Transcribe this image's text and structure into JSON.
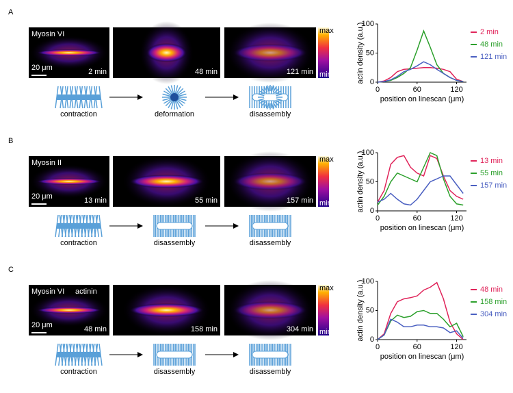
{
  "panels": [
    {
      "label": "A",
      "protein": "Myosin VI",
      "colorbar": {
        "max": "max",
        "min": "min"
      },
      "scale_bar": "20 μm",
      "times": [
        "2 min",
        "48 min",
        "121 min"
      ],
      "steps": [
        "contraction",
        "deformation",
        "disassembly"
      ]
    },
    {
      "label": "B",
      "protein": "Myosin II",
      "colorbar": {
        "max": "max",
        "min": "min"
      },
      "scale_bar": "20 μm",
      "times": [
        "13 min",
        "55 min",
        "157 min"
      ],
      "steps": [
        "contraction",
        "disassembly",
        "disassembly"
      ]
    },
    {
      "label": "C",
      "protein": "Myosin VI",
      "protein2": "actinin",
      "colorbar": {
        "max": "max",
        "min": "min"
      },
      "scale_bar": "20 μm",
      "times": [
        "48 min",
        "158 min",
        "304 min"
      ],
      "steps": [
        "contraction",
        "disassembly",
        "disassembly"
      ]
    }
  ],
  "chart_data": [
    {
      "type": "line",
      "xlabel": "position on linescan (μm)",
      "ylabel": "actin density (a.u.)",
      "x": [
        0,
        10,
        20,
        30,
        40,
        50,
        60,
        70,
        80,
        90,
        100,
        110,
        120,
        130
      ],
      "xlim": [
        0,
        135
      ],
      "xticks": [
        0,
        60,
        120
      ],
      "ylim": [
        0,
        100
      ],
      "yticks": [
        0,
        50,
        100
      ],
      "series": [
        {
          "name": "2 min",
          "color": "#e0245a",
          "values": [
            0,
            2,
            8,
            18,
            22,
            23,
            24,
            25,
            25,
            24,
            22,
            18,
            5,
            1
          ]
        },
        {
          "name": "48 min",
          "color": "#2ca02c",
          "values": [
            0,
            1,
            3,
            8,
            15,
            25,
            55,
            88,
            60,
            30,
            15,
            8,
            3,
            1
          ]
        },
        {
          "name": "121 min",
          "color": "#4a5fc1",
          "values": [
            0,
            1,
            4,
            10,
            18,
            22,
            28,
            35,
            30,
            22,
            15,
            8,
            3,
            1
          ]
        }
      ]
    },
    {
      "type": "line",
      "xlabel": "position on linescan (μm)",
      "ylabel": "actin density (a.u.)",
      "x": [
        0,
        10,
        20,
        30,
        40,
        50,
        60,
        70,
        80,
        90,
        100,
        110,
        120,
        130
      ],
      "xlim": [
        0,
        135
      ],
      "xticks": [
        0,
        60,
        120
      ],
      "ylim": [
        0,
        100
      ],
      "yticks": [
        0,
        50,
        100
      ],
      "series": [
        {
          "name": "13 min",
          "color": "#e0245a",
          "values": [
            15,
            35,
            80,
            92,
            95,
            75,
            65,
            60,
            95,
            90,
            60,
            35,
            25,
            20
          ]
        },
        {
          "name": "55 min",
          "color": "#2ca02c",
          "values": [
            10,
            25,
            50,
            65,
            60,
            55,
            50,
            75,
            100,
            95,
            55,
            25,
            12,
            10
          ]
        },
        {
          "name": "157 min",
          "color": "#4a5fc1",
          "values": [
            15,
            20,
            30,
            20,
            12,
            10,
            20,
            35,
            50,
            55,
            60,
            60,
            45,
            30
          ]
        }
      ]
    },
    {
      "type": "line",
      "xlabel": "position on linescan (μm)",
      "ylabel": "actin density (a.u.)",
      "x": [
        0,
        10,
        20,
        30,
        40,
        50,
        60,
        70,
        80,
        90,
        100,
        110,
        120,
        130
      ],
      "xlim": [
        0,
        135
      ],
      "xticks": [
        0,
        60,
        120
      ],
      "ylim": [
        0,
        100
      ],
      "yticks": [
        0,
        50,
        100
      ],
      "series": [
        {
          "name": "48 min",
          "color": "#e0245a",
          "values": [
            0,
            10,
            45,
            65,
            70,
            72,
            75,
            85,
            90,
            98,
            70,
            30,
            10,
            0
          ]
        },
        {
          "name": "158 min",
          "color": "#2ca02c",
          "values": [
            0,
            8,
            32,
            42,
            38,
            40,
            48,
            50,
            45,
            45,
            35,
            22,
            28,
            5
          ]
        },
        {
          "name": "304 min",
          "color": "#4a5fc1",
          "values": [
            0,
            8,
            35,
            30,
            22,
            22,
            25,
            25,
            22,
            22,
            20,
            12,
            15,
            2
          ]
        }
      ]
    }
  ]
}
